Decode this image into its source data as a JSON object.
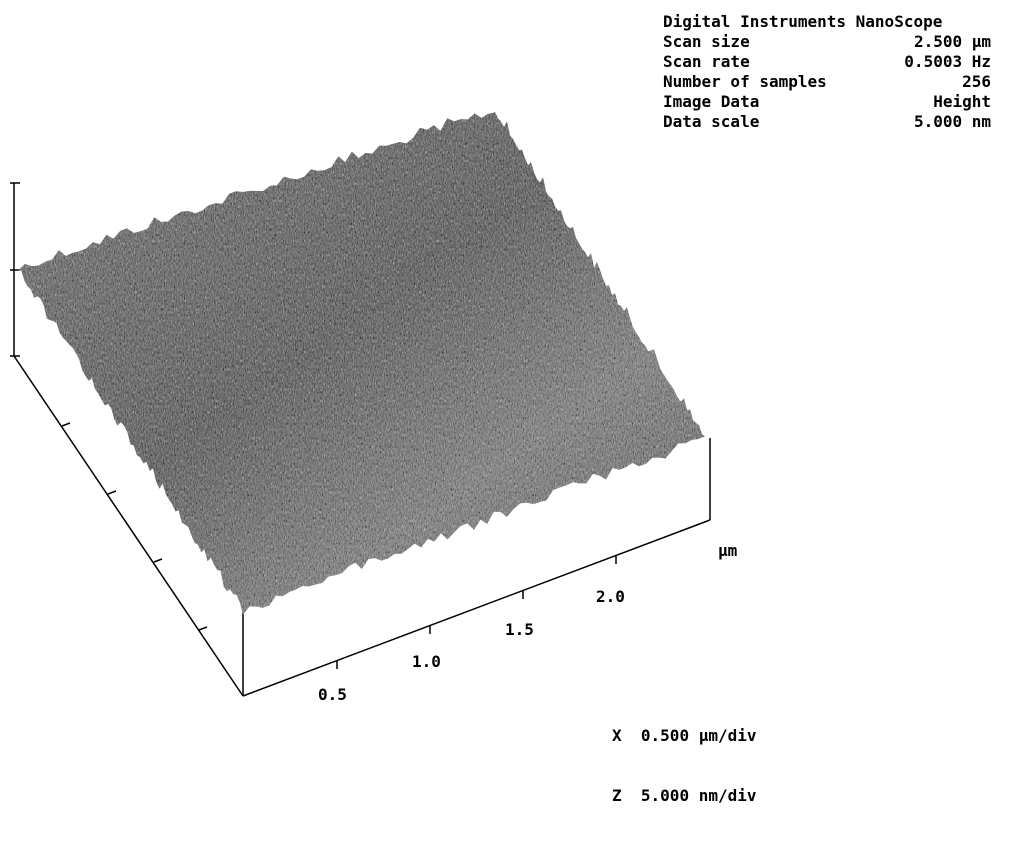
{
  "header": {
    "title": "Digital Instruments NanoScope",
    "rows": [
      {
        "label": "Scan size",
        "value": "2.500 µm"
      },
      {
        "label": "Scan rate",
        "value": "0.5003 Hz"
      },
      {
        "label": "Number of samples",
        "value": "256"
      },
      {
        "label": "Image Data",
        "value": "Height"
      },
      {
        "label": "Data scale",
        "value": "5.000 nm"
      }
    ]
  },
  "axes": {
    "unit": "µm",
    "ticks": [
      "0.5",
      "1.0",
      "1.5",
      "2.0"
    ]
  },
  "scales": {
    "x": {
      "axis": "X",
      "value": "0.500 µm/div"
    },
    "z": {
      "axis": "Z",
      "value": "5.000 nm/div"
    }
  },
  "colors": {
    "surface_dark": "#3a3a3a",
    "surface_light": "#a8a8a8",
    "axis": "#000000",
    "background": "#ffffff"
  }
}
